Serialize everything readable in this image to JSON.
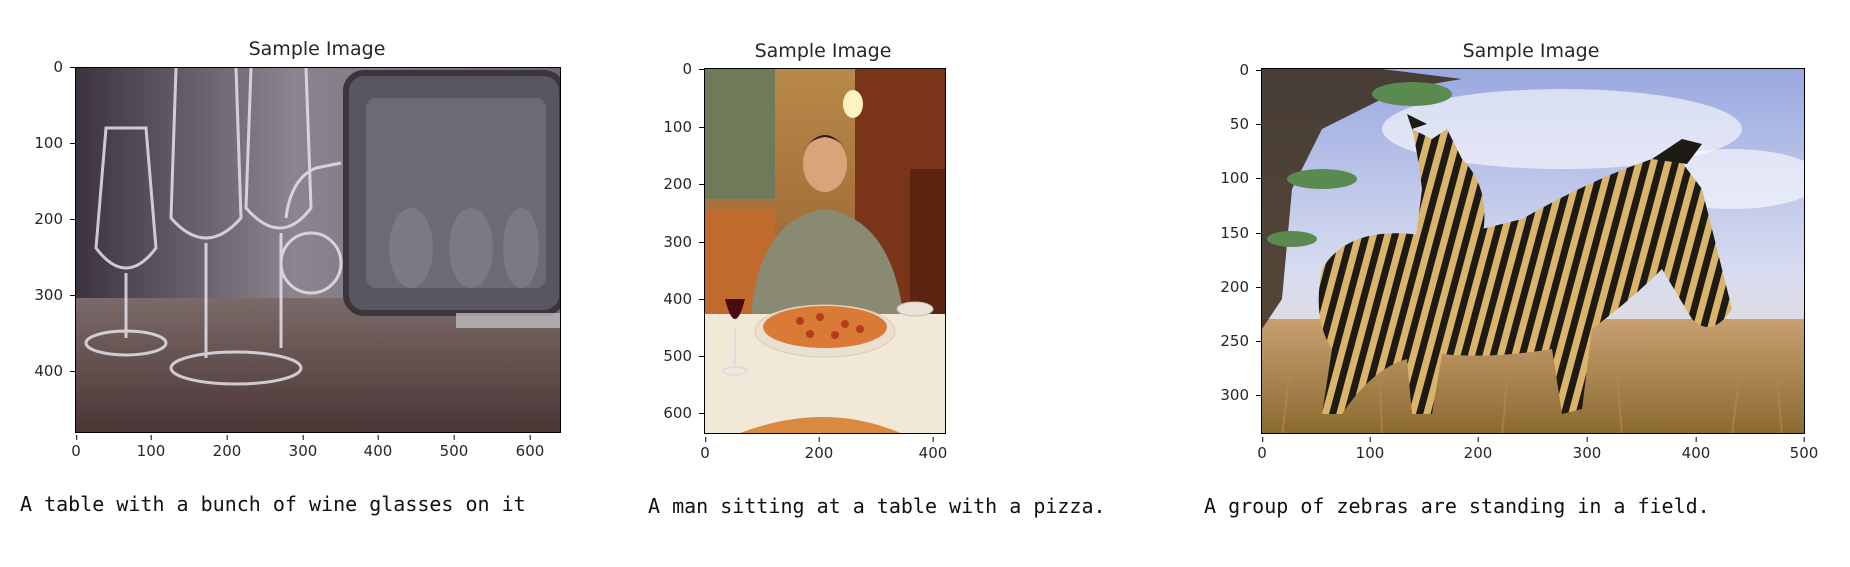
{
  "figures": [
    {
      "title": "Sample Image",
      "caption": "A table with a bunch of wine glasses on it",
      "y_ticks": [
        "0",
        "100",
        "200",
        "300",
        "400"
      ],
      "x_ticks": [
        "0",
        "100",
        "200",
        "300",
        "400",
        "500",
        "600"
      ],
      "image_subject": "wine glasses and glass tray on a table"
    },
    {
      "title": "Sample Image",
      "caption": "A man sitting at a table with a pizza.",
      "y_ticks": [
        "0",
        "100",
        "200",
        "300",
        "400",
        "500",
        "600"
      ],
      "x_ticks": [
        "0",
        "200",
        "400"
      ],
      "image_subject": "man at restaurant table with pizza"
    },
    {
      "title": "Sample Image",
      "caption": "A group of zebras are standing in a field.",
      "y_ticks": [
        "0",
        "50",
        "100",
        "150",
        "200",
        "250",
        "300"
      ],
      "x_ticks": [
        "0",
        "100",
        "200",
        "300",
        "400",
        "500"
      ],
      "image_subject": "zebras standing in a grassy field"
    }
  ]
}
